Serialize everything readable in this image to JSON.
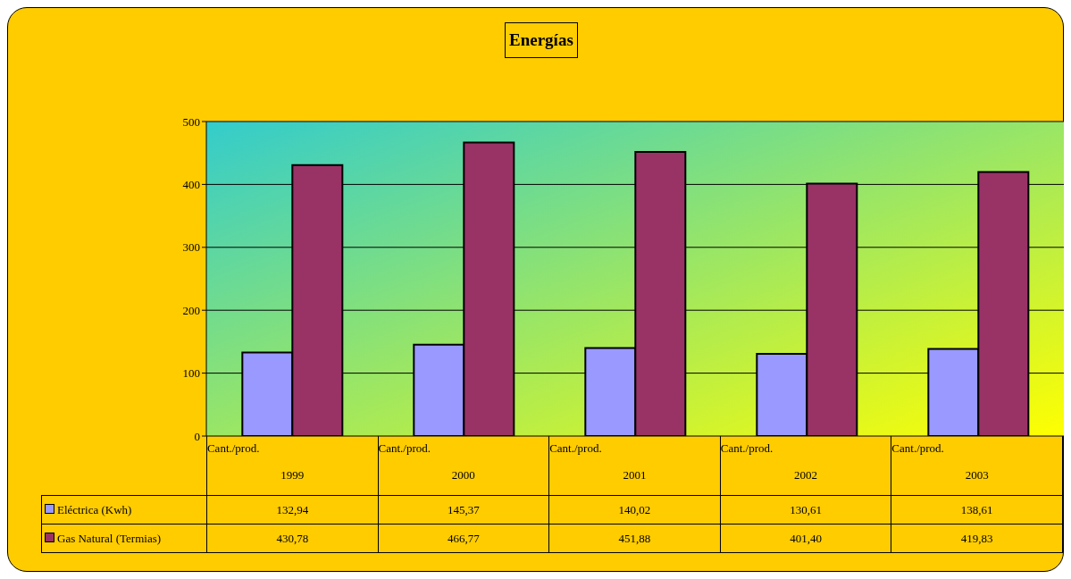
{
  "chart_data": {
    "type": "bar",
    "title": "Energías",
    "categories": [
      "Cant./prod.\n1999",
      "Cant./prod.\n2000",
      "Cant./prod.\n2001",
      "Cant./prod.\n2002",
      "Cant./prod.\n2003"
    ],
    "series": [
      {
        "name": "Eléctrica (Kwh)",
        "color": "#9999ff",
        "values": [
          132.94,
          145.37,
          140.02,
          130.61,
          138.61
        ],
        "value_labels": [
          "132,94",
          "145,37",
          "140,02",
          "130,61",
          "138,61"
        ]
      },
      {
        "name": "Gas Natural (Termias)",
        "color": "#993366",
        "values": [
          430.78,
          466.77,
          451.88,
          401.4,
          419.83
        ],
        "value_labels": [
          "430,78",
          "466,77",
          "451,88",
          "401,40",
          "419,83"
        ]
      }
    ],
    "ylim": [
      0,
      500
    ],
    "yticks": [
      0,
      100,
      200,
      300,
      400,
      500
    ],
    "grid": "y",
    "legend": "bottom",
    "data_labels": true
  }
}
